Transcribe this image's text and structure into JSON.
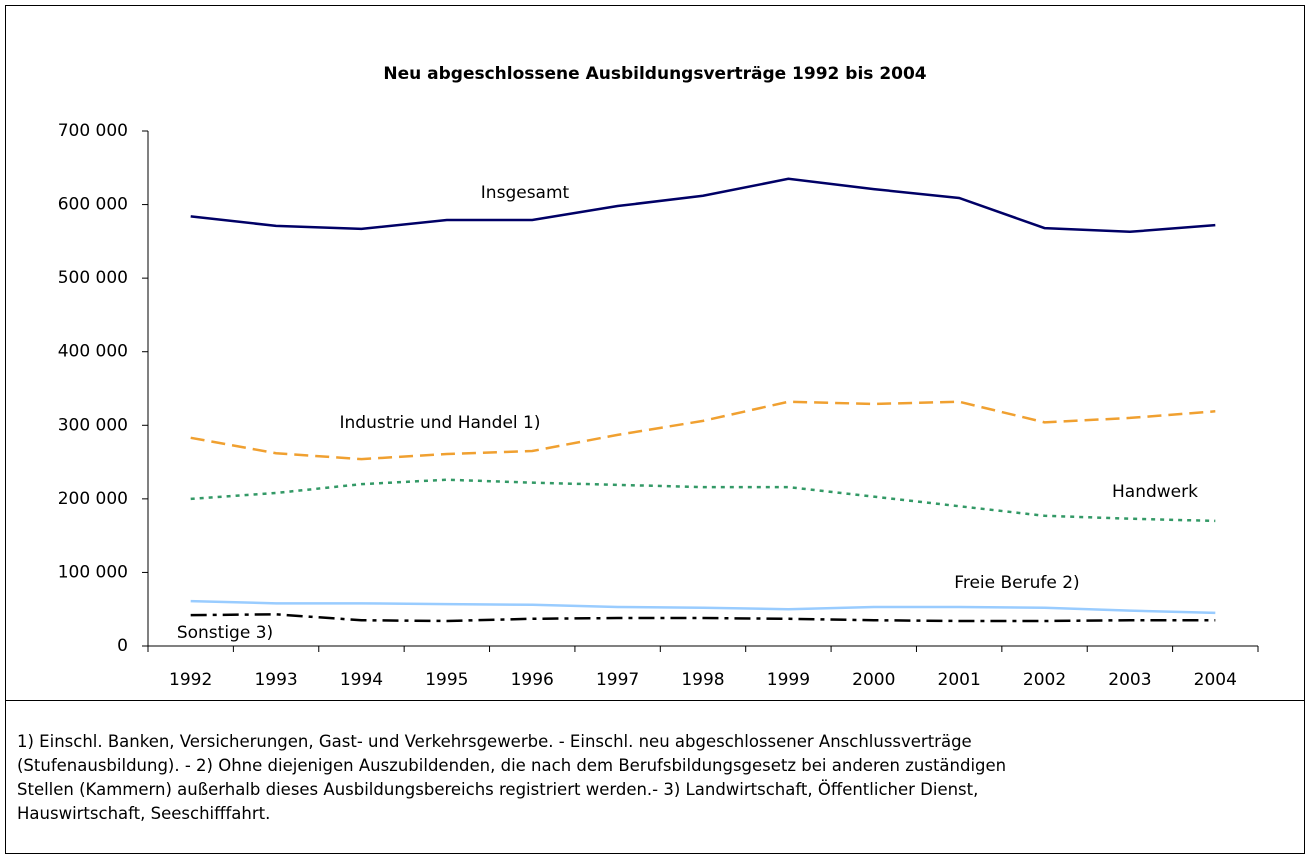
{
  "chart_data": {
    "type": "line",
    "title": "Neu abgeschlossene Ausbildungsverträge 1992 bis 2004",
    "categories": [
      "1992",
      "1993",
      "1994",
      "1995",
      "1996",
      "1997",
      "1998",
      "1999",
      "2000",
      "2001",
      "2002",
      "2003",
      "2004"
    ],
    "ylim": [
      0,
      700000
    ],
    "yticks": [
      0,
      {
        "value": 100000,
        "label": "100 000"
      },
      {
        "value": 200000,
        "label": "200 000"
      },
      {
        "value": 300000,
        "label": "300 000"
      },
      {
        "value": 400000,
        "label": "400 000"
      },
      {
        "value": 500000,
        "label": "500 000"
      },
      {
        "value": 600000,
        "label": "600 000"
      },
      {
        "value": 700000,
        "label": "700 000"
      }
    ],
    "grid": false,
    "series": [
      {
        "name": "Insgesamt",
        "color": "#000066",
        "dash": "solid",
        "values": [
          584000,
          571000,
          567000,
          579000,
          579000,
          598000,
          612000,
          635000,
          621000,
          609000,
          568000,
          563000,
          572000
        ]
      },
      {
        "name": "Industrie und Handel 1)",
        "color": "#f0a030",
        "dash": "dashed",
        "values": [
          283000,
          262000,
          254000,
          261000,
          265000,
          287000,
          306000,
          332000,
          329000,
          332000,
          304000,
          310000,
          319000
        ]
      },
      {
        "name": "Handwerk",
        "color": "#339966",
        "dash": "dotted",
        "values": [
          200000,
          208000,
          220000,
          226000,
          222000,
          219000,
          216000,
          216000,
          203000,
          190000,
          177000,
          173000,
          170000
        ]
      },
      {
        "name": "Freie Berufe 2)",
        "color": "#99ccff",
        "dash": "solid",
        "values": [
          61000,
          58000,
          58000,
          57000,
          56000,
          53000,
          52000,
          50000,
          53000,
          53000,
          52000,
          48000,
          45000
        ]
      },
      {
        "name": "Sonstige 3)",
        "color": "#000000",
        "dash": "dashdot",
        "values": [
          42000,
          43000,
          35000,
          34000,
          37000,
          38000,
          38000,
          37000,
          35000,
          34000,
          34000,
          35000,
          35000
        ]
      }
    ]
  },
  "footnote": [
    "1) Einschl. Banken, Versicherungen, Gast- und Verkehrsgewerbe. - Einschl. neu abgeschlossener Anschlussverträge",
    "(Stufenausbildung). - 2) Ohne diejenigen Auszubildenden, die nach dem Berufsbildungsgesetz bei anderen zuständigen",
    "Stellen (Kammern) außerhalb dieses Ausbildungsbereichs registriert werden.- 3) Landwirtschaft, Öffentlicher Dienst,",
    "Hauswirtschaft, Seeschifffahrt."
  ]
}
